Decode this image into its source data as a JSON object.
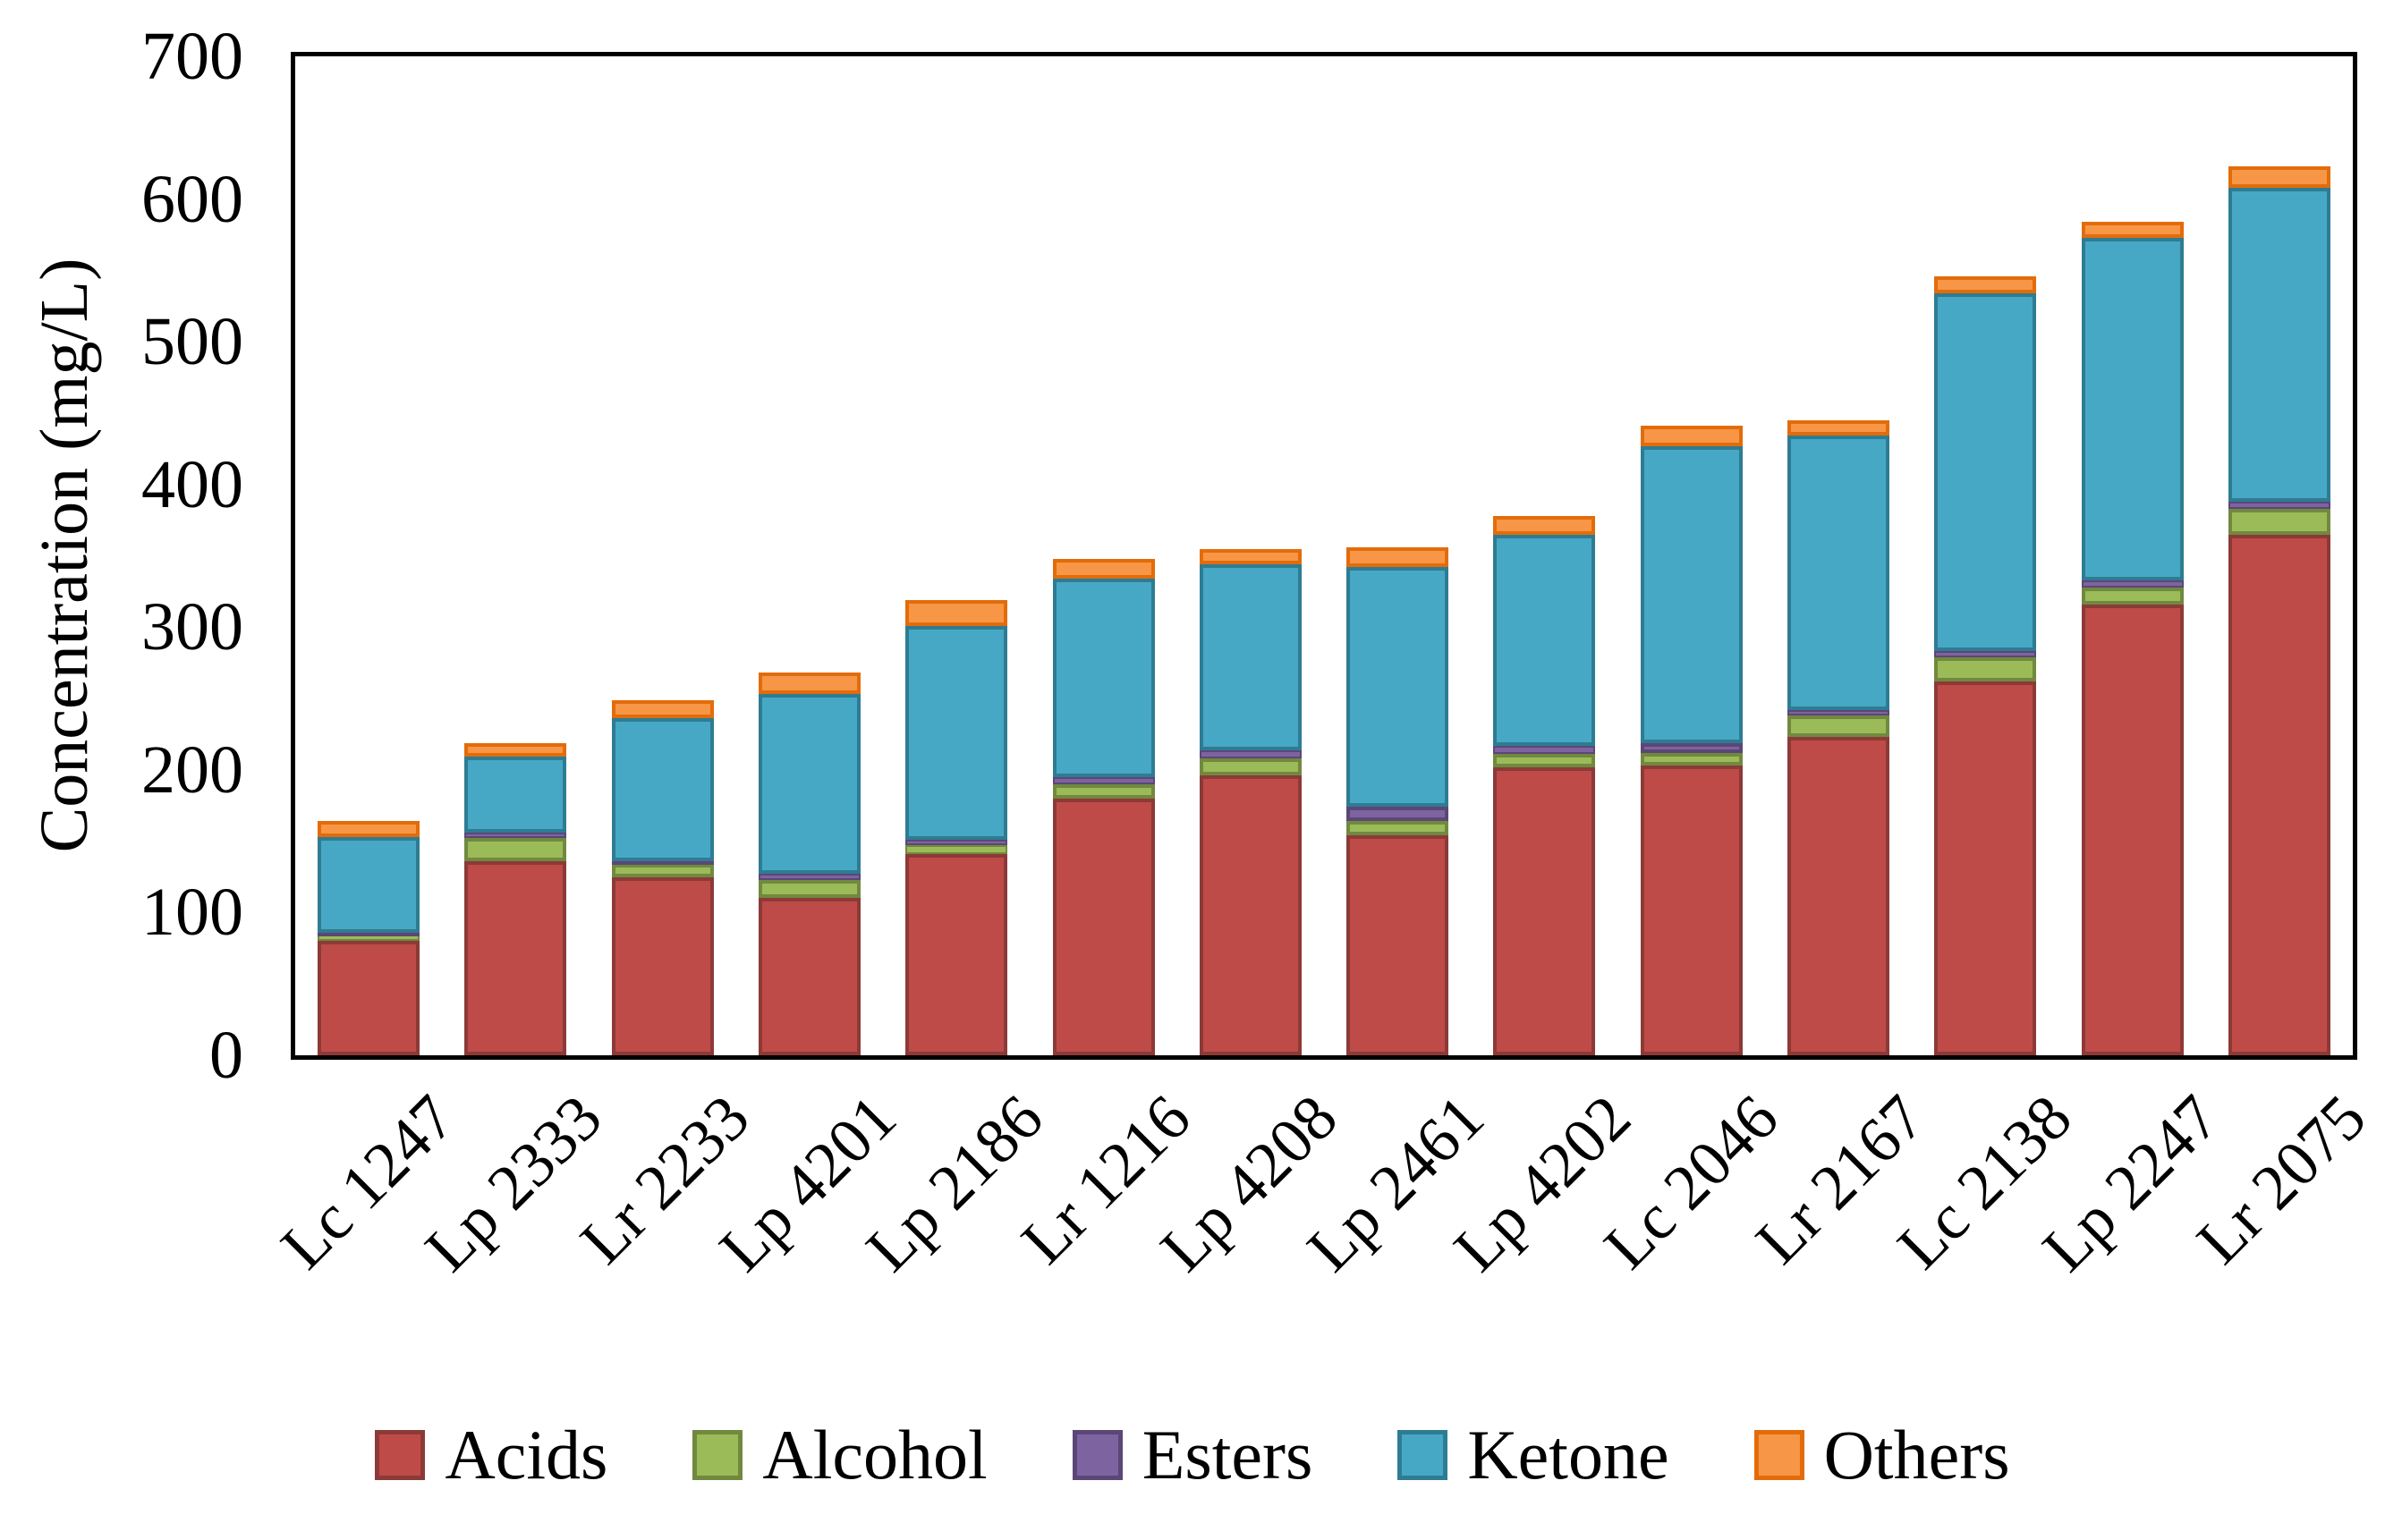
{
  "figure": {
    "background": "#ffffff",
    "axis_color": "#000000"
  },
  "chart_data": {
    "type": "bar",
    "stacked": true,
    "title": "",
    "xlabel": "",
    "ylabel": "Concentration (mg/L)",
    "ylim": [
      0,
      700
    ],
    "yticks": [
      0,
      100,
      200,
      300,
      400,
      500,
      600,
      700
    ],
    "grid": false,
    "legend_position": "bottom",
    "categories": [
      "Lc 1247",
      "Lp 2333",
      "Lr 2233",
      "Lp 4201",
      "Lp 2186",
      "Lr 1216",
      "Lp 4208",
      "Lp 2461",
      "Lp 4202",
      "Lc 2046",
      "Lr 2167",
      "Lc 2138",
      "Lp 2247",
      "Lr 2075"
    ],
    "series": [
      {
        "name": "Acids",
        "color": "#BE4B48",
        "border": "#8C3A37",
        "values": [
          80,
          136,
          125,
          110,
          141,
          180,
          196,
          154,
          202,
          203,
          223,
          262,
          316,
          365
        ]
      },
      {
        "name": "Alcohol",
        "color": "#9BBB59",
        "border": "#71893F",
        "values": [
          5,
          16,
          9,
          13,
          6,
          10,
          12,
          10,
          9,
          9,
          15,
          17,
          12,
          18
        ]
      },
      {
        "name": "Esters",
        "color": "#7E63A1",
        "border": "#5B4776",
        "values": [
          1,
          4,
          2,
          4,
          4,
          5,
          6,
          10,
          6,
          7,
          4,
          4,
          5,
          5
        ]
      },
      {
        "name": "Ketone",
        "color": "#46A8C4",
        "border": "#2E7C93",
        "values": [
          67,
          53,
          100,
          126,
          150,
          139,
          130,
          168,
          148,
          208,
          192,
          251,
          240,
          220
        ]
      },
      {
        "name": "Others",
        "color": "#F79646",
        "border": "#E36C0A",
        "values": [
          11,
          10,
          13,
          15,
          18,
          14,
          11,
          14,
          13,
          14,
          11,
          12,
          11,
          15
        ]
      }
    ],
    "totals": [
      164,
      219,
      249,
      268,
      319,
      348,
      355,
      356,
      378,
      441,
      445,
      546,
      584,
      623
    ]
  }
}
